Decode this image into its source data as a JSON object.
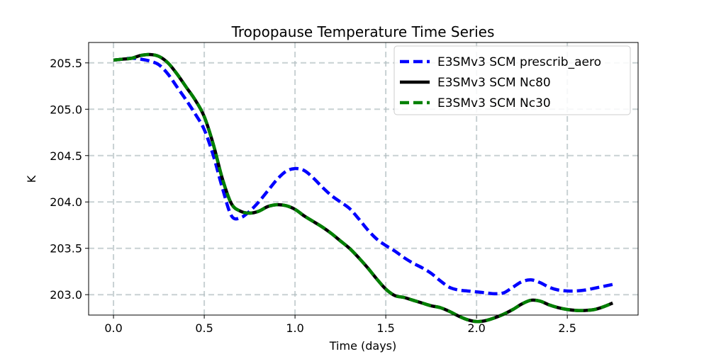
{
  "chart_data": {
    "type": "line",
    "title": "Tropopause Temperature Time Series",
    "xlabel": "Time (days)",
    "ylabel": "K",
    "xlim": [
      -0.137,
      2.89
    ],
    "ylim": [
      202.78,
      205.72
    ],
    "xticks": [
      0.0,
      0.5,
      1.0,
      1.5,
      2.0,
      2.5
    ],
    "xtick_labels": [
      "0.0",
      "0.5",
      "1.0",
      "1.5",
      "2.0",
      "2.5"
    ],
    "yticks": [
      203.0,
      203.5,
      204.0,
      204.5,
      205.0,
      205.5
    ],
    "ytick_labels": [
      "203.0",
      "203.5",
      "204.0",
      "204.5",
      "205.0",
      "205.5"
    ],
    "grid": true,
    "legend_position": "top-right",
    "series": [
      {
        "name": "E3SMv3 SCM prescrib_aero",
        "color": "#0000ff",
        "style": "dashed",
        "x": [
          0.0,
          0.05,
          0.1,
          0.15,
          0.2,
          0.25,
          0.3,
          0.35,
          0.4,
          0.45,
          0.5,
          0.55,
          0.6,
          0.65,
          0.7,
          0.75,
          0.8,
          0.85,
          0.9,
          0.95,
          1.0,
          1.05,
          1.1,
          1.15,
          1.2,
          1.25,
          1.3,
          1.35,
          1.4,
          1.45,
          1.5,
          1.55,
          1.6,
          1.65,
          1.7,
          1.75,
          1.8,
          1.85,
          1.9,
          1.95,
          2.0,
          2.05,
          2.1,
          2.15,
          2.2,
          2.25,
          2.3,
          2.35,
          2.4,
          2.45,
          2.5,
          2.55,
          2.6,
          2.65,
          2.7,
          2.75
        ],
        "values": [
          205.53,
          205.54,
          205.55,
          205.54,
          205.52,
          205.48,
          205.38,
          205.24,
          205.1,
          204.95,
          204.78,
          204.5,
          204.15,
          203.85,
          203.83,
          203.9,
          204.0,
          204.12,
          204.24,
          204.33,
          204.36,
          204.34,
          204.26,
          204.16,
          204.07,
          204.0,
          203.93,
          203.82,
          203.7,
          203.6,
          203.53,
          203.47,
          203.4,
          203.34,
          203.29,
          203.23,
          203.15,
          203.08,
          203.05,
          203.04,
          203.03,
          203.02,
          203.01,
          203.02,
          203.08,
          203.14,
          203.16,
          203.13,
          203.08,
          203.05,
          203.04,
          203.04,
          203.05,
          203.07,
          203.09,
          203.11
        ]
      },
      {
        "name": "E3SMv3 SCM Nc80",
        "color": "#000000",
        "style": "solid",
        "x": [
          0.0,
          0.05,
          0.1,
          0.15,
          0.2,
          0.25,
          0.3,
          0.35,
          0.4,
          0.45,
          0.5,
          0.55,
          0.6,
          0.65,
          0.7,
          0.75,
          0.8,
          0.85,
          0.9,
          0.95,
          1.0,
          1.05,
          1.1,
          1.15,
          1.2,
          1.25,
          1.3,
          1.35,
          1.4,
          1.45,
          1.5,
          1.55,
          1.6,
          1.65,
          1.7,
          1.75,
          1.8,
          1.85,
          1.9,
          1.95,
          2.0,
          2.05,
          2.1,
          2.15,
          2.2,
          2.25,
          2.3,
          2.35,
          2.4,
          2.45,
          2.5,
          2.55,
          2.6,
          2.65,
          2.7,
          2.75
        ],
        "values": [
          205.53,
          205.54,
          205.55,
          205.58,
          205.59,
          205.57,
          205.5,
          205.38,
          205.24,
          205.1,
          204.92,
          204.62,
          204.25,
          203.98,
          203.9,
          203.88,
          203.9,
          203.95,
          203.97,
          203.96,
          203.92,
          203.85,
          203.79,
          203.73,
          203.66,
          203.58,
          203.5,
          203.4,
          203.29,
          203.17,
          203.06,
          202.99,
          202.97,
          202.94,
          202.91,
          202.88,
          202.86,
          202.82,
          202.77,
          202.73,
          202.71,
          202.72,
          202.75,
          202.79,
          202.84,
          202.9,
          202.94,
          202.93,
          202.89,
          202.86,
          202.84,
          202.83,
          202.83,
          202.84,
          202.87,
          202.91
        ]
      },
      {
        "name": "E3SMv3 SCM Nc30",
        "color": "#008000",
        "style": "dashed",
        "x": [
          0.0,
          0.05,
          0.1,
          0.15,
          0.2,
          0.25,
          0.3,
          0.35,
          0.4,
          0.45,
          0.5,
          0.55,
          0.6,
          0.65,
          0.7,
          0.75,
          0.8,
          0.85,
          0.9,
          0.95,
          1.0,
          1.05,
          1.1,
          1.15,
          1.2,
          1.25,
          1.3,
          1.35,
          1.4,
          1.45,
          1.5,
          1.55,
          1.6,
          1.65,
          1.7,
          1.75,
          1.8,
          1.85,
          1.9,
          1.95,
          2.0,
          2.05,
          2.1,
          2.15,
          2.2,
          2.25,
          2.3,
          2.35,
          2.4,
          2.45,
          2.5,
          2.55,
          2.6,
          2.65,
          2.7,
          2.75
        ],
        "values": [
          205.53,
          205.54,
          205.55,
          205.58,
          205.59,
          205.57,
          205.5,
          205.38,
          205.24,
          205.1,
          204.92,
          204.62,
          204.25,
          203.98,
          203.9,
          203.88,
          203.9,
          203.95,
          203.97,
          203.96,
          203.92,
          203.85,
          203.79,
          203.73,
          203.66,
          203.58,
          203.5,
          203.4,
          203.29,
          203.17,
          203.06,
          202.99,
          202.97,
          202.94,
          202.91,
          202.88,
          202.86,
          202.82,
          202.77,
          202.73,
          202.71,
          202.72,
          202.75,
          202.79,
          202.84,
          202.9,
          202.94,
          202.93,
          202.89,
          202.86,
          202.84,
          202.83,
          202.83,
          202.84,
          202.87,
          202.91
        ]
      }
    ]
  }
}
